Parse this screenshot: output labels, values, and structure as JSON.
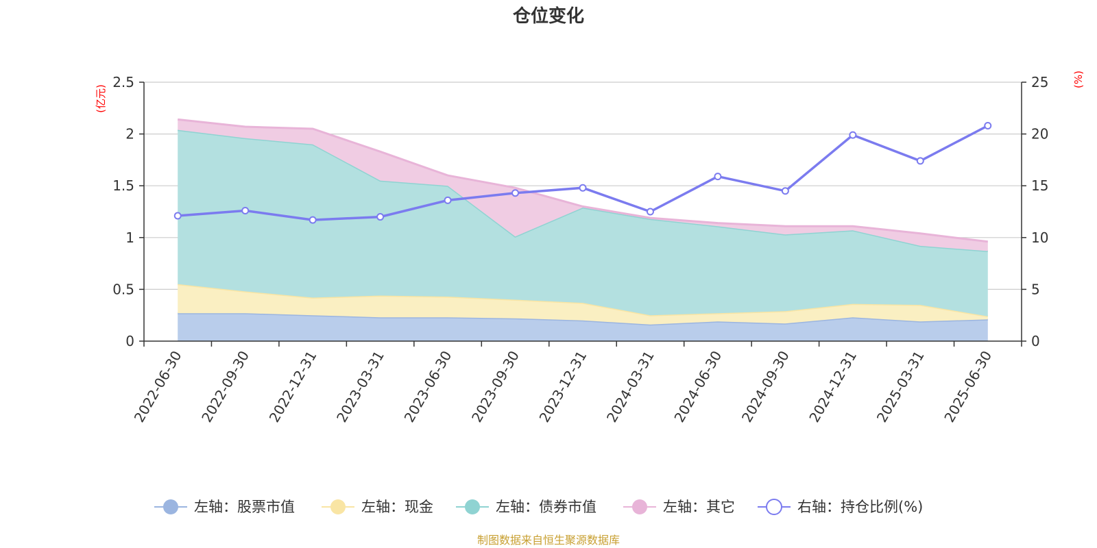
{
  "chart_data": {
    "type": "area",
    "title": "仓位变化",
    "left_axis": {
      "unit": "(亿元)",
      "ylim": [
        0,
        2.5
      ],
      "ticks": [
        "0",
        "0.5",
        "1",
        "1.5",
        "2",
        "2.5"
      ]
    },
    "right_axis": {
      "unit": "(%)",
      "ylim": [
        0,
        25
      ],
      "ticks": [
        "0",
        "5",
        "10",
        "15",
        "20",
        "25"
      ]
    },
    "categories": [
      "2022-06-30",
      "2022-09-30",
      "2022-12-31",
      "2023-03-31",
      "2023-06-30",
      "2023-09-30",
      "2023-12-31",
      "2024-03-31",
      "2024-06-30",
      "2024-09-30",
      "2024-12-31",
      "2025-03-31",
      "2025-06-30"
    ],
    "stacked": true,
    "grid": true,
    "legend_position": "bottom",
    "series": [
      {
        "name": "左轴：股票市值",
        "axis": "left",
        "color": "#9bb5e0",
        "fill": "#b9cdeb",
        "values": [
          0.27,
          0.27,
          0.25,
          0.23,
          0.23,
          0.22,
          0.2,
          0.16,
          0.19,
          0.17,
          0.23,
          0.19,
          0.21
        ]
      },
      {
        "name": "左轴：现金",
        "axis": "left",
        "color": "#f9e5a4",
        "fill": "#faefc2",
        "values": [
          0.28,
          0.21,
          0.17,
          0.21,
          0.2,
          0.18,
          0.17,
          0.09,
          0.08,
          0.12,
          0.13,
          0.16,
          0.03
        ]
      },
      {
        "name": "左轴：债券市值",
        "axis": "left",
        "color": "#8fd3d2",
        "fill": "#b3e0e0",
        "values": [
          1.49,
          1.48,
          1.48,
          1.11,
          1.07,
          0.61,
          0.92,
          0.93,
          0.84,
          0.74,
          0.71,
          0.57,
          0.63
        ]
      },
      {
        "name": "左轴：其它",
        "axis": "left",
        "color": "#e8b4d8",
        "fill": "#f0cce3",
        "values": [
          0.1,
          0.11,
          0.15,
          0.28,
          0.1,
          0.47,
          0.01,
          0.01,
          0.03,
          0.08,
          0.04,
          0.12,
          0.09
        ]
      },
      {
        "name": "右轴：持仓比例(%)",
        "axis": "right",
        "color": "#7b7bef",
        "type": "line",
        "values": [
          12.1,
          12.6,
          11.7,
          12.0,
          13.6,
          14.3,
          14.8,
          12.5,
          15.9,
          14.5,
          19.9,
          17.4,
          20.8
        ]
      }
    ]
  },
  "source_note": "制图数据来自恒生聚源数据库",
  "colors": {
    "axis": "#333333",
    "grid": "#cccccc",
    "unit_label": "#ff0000",
    "source_note": "#c8a032"
  }
}
